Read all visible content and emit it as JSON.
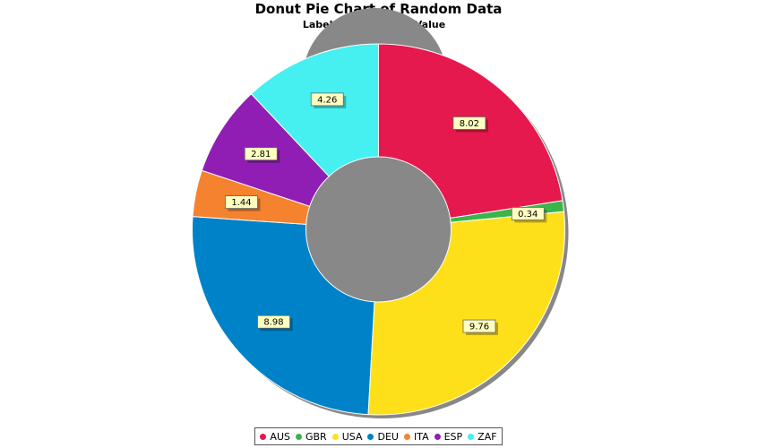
{
  "chart_data": {
    "type": "pie",
    "variant": "donut",
    "title": "Donut Pie Chart of Random Data",
    "subtitle": "Labels with Section Value",
    "categories": [
      "AUS",
      "GBR",
      "USA",
      "DEU",
      "ITA",
      "ESP",
      "ZAF"
    ],
    "values": [
      8.02,
      0.34,
      9.76,
      8.98,
      1.44,
      2.81,
      4.26
    ],
    "value_labels": [
      "8.02",
      "0.34",
      "9.76",
      "8.98",
      "1.44",
      "2.81",
      "4.26"
    ],
    "colors": [
      "#e5194d",
      "#3cb44b",
      "#fee01a",
      "#0082c8",
      "#f5822f",
      "#911eb4",
      "#46f0f0"
    ],
    "label_box_color": "#ffffc0",
    "start": "12 o'clock",
    "direction": "clockwise",
    "legend": {
      "position": "bottom"
    }
  }
}
